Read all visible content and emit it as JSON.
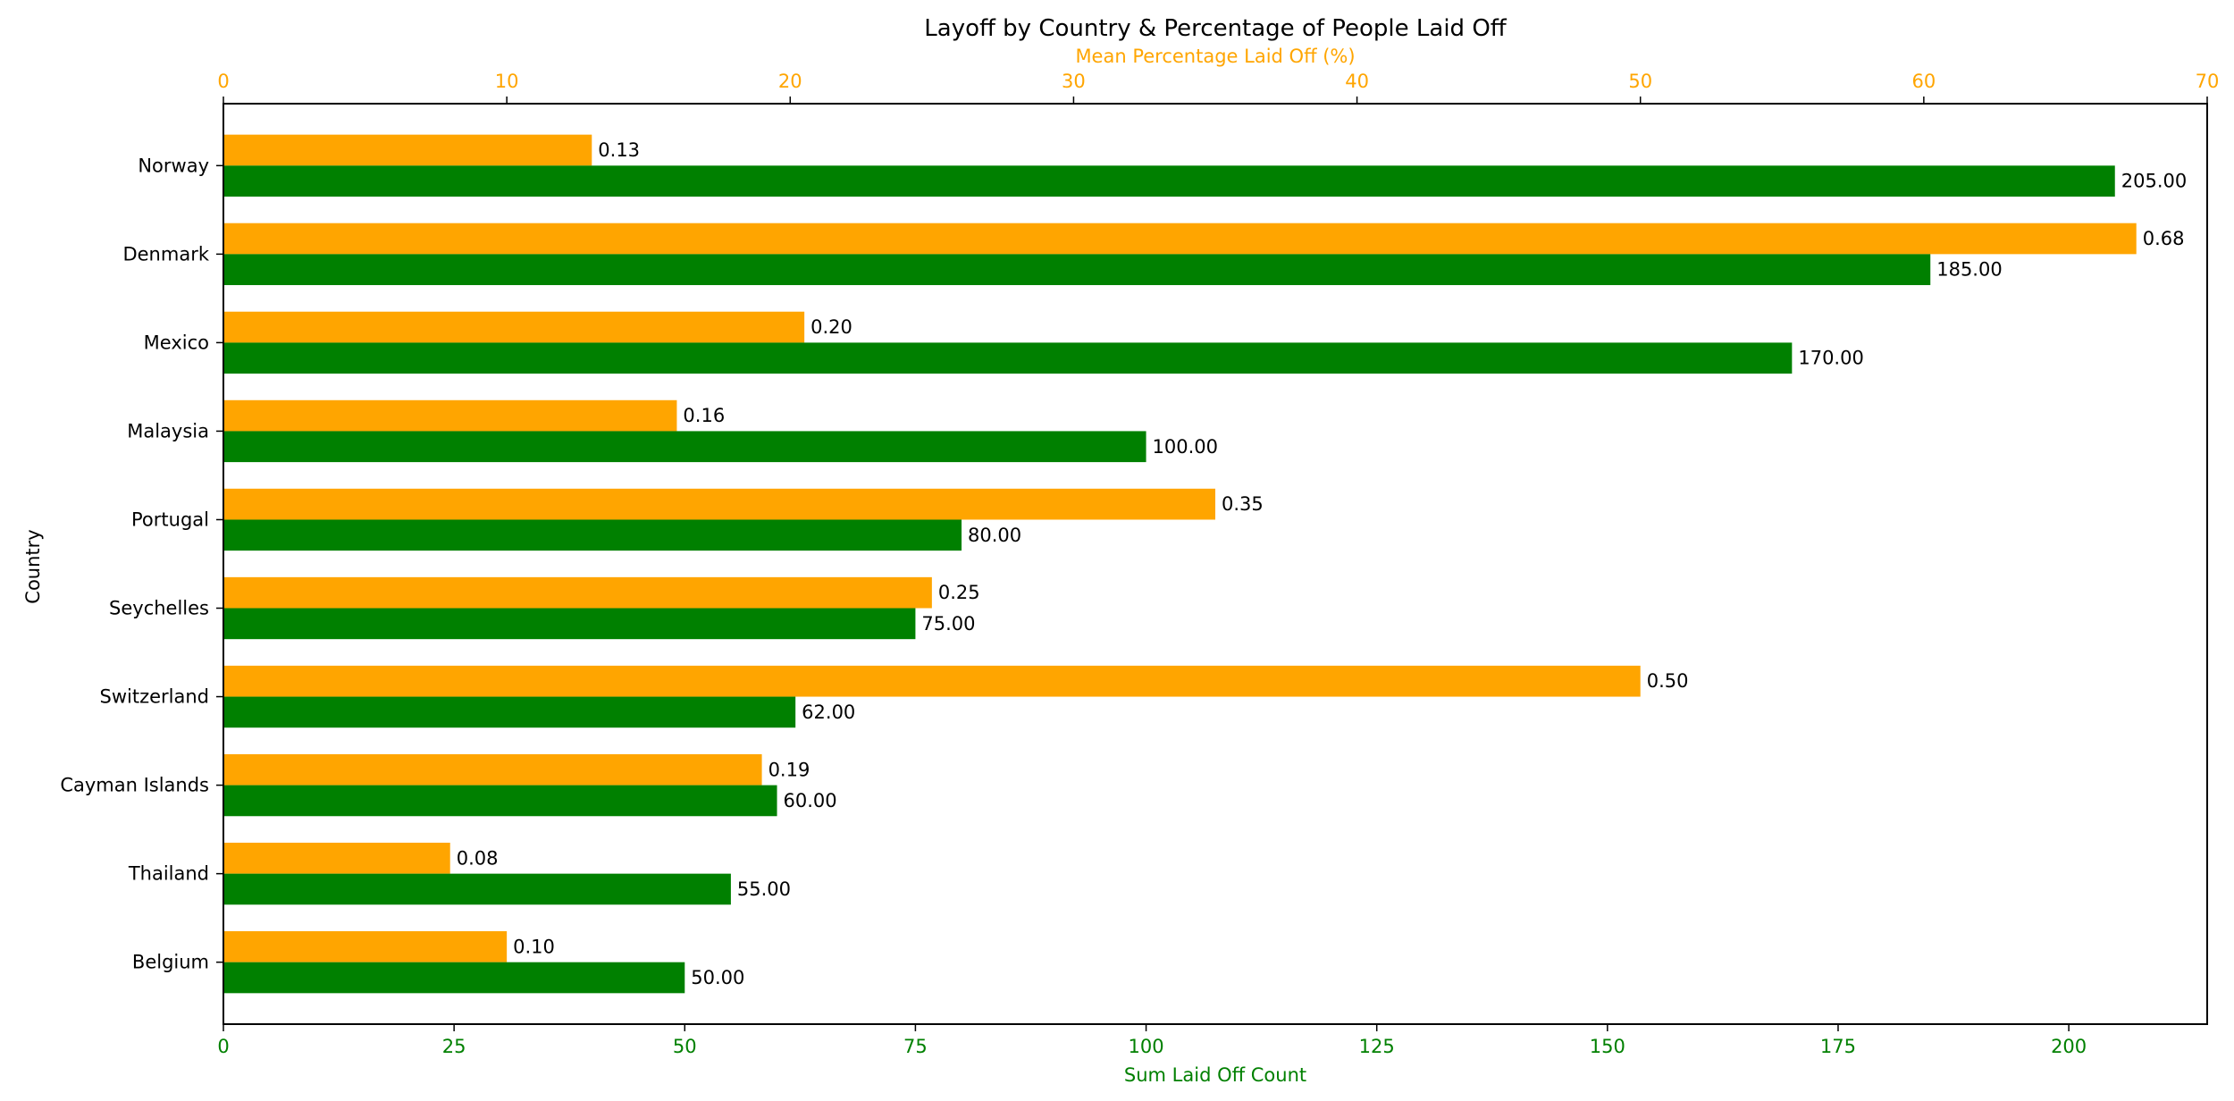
{
  "chart_data": {
    "type": "bar",
    "orientation": "horizontal",
    "title": "Layoff by Country & Percentage of People Laid Off",
    "ylabel": "Country",
    "categories": [
      "Norway",
      "Denmark",
      "Mexico",
      "Malaysia",
      "Portugal",
      "Seychelles",
      "Switzerland",
      "Cayman Islands",
      "Thailand",
      "Belgium"
    ],
    "bottom_axis": {
      "label": "Sum Laid Off Count",
      "xlim": [
        0,
        215
      ],
      "ticks": [
        0,
        25,
        50,
        75,
        100,
        125,
        150,
        175,
        200
      ],
      "color": "#008000"
    },
    "top_axis": {
      "label": "Mean Percentage Laid Off (%)",
      "xlim": [
        0,
        70
      ],
      "ticks": [
        0,
        10,
        20,
        30,
        40,
        50,
        60,
        70
      ],
      "color": "#FFA500"
    },
    "series": [
      {
        "name": "Mean Percentage Laid Off (%)",
        "axis": "top",
        "color": "#FFA500",
        "values": [
          0.13,
          0.68,
          0.2,
          0.16,
          0.35,
          0.25,
          0.5,
          0.19,
          0.08,
          0.1
        ],
        "display_values": [
          13,
          67.5,
          20.5,
          16,
          35,
          25,
          50,
          19,
          8,
          10
        ],
        "labels": [
          "0.13",
          "0.68",
          "0.20",
          "0.16",
          "0.35",
          "0.25",
          "0.50",
          "0.19",
          "0.08",
          "0.10"
        ]
      },
      {
        "name": "Sum Laid Off Count",
        "axis": "bottom",
        "color": "#008000",
        "values": [
          205,
          185,
          170,
          100,
          80,
          75,
          62,
          60,
          55,
          50
        ],
        "labels": [
          "205.00",
          "185.00",
          "170.00",
          "100.00",
          "80.00",
          "75.00",
          "62.00",
          "60.00",
          "55.00",
          "50.00"
        ]
      }
    ],
    "grid": false,
    "legend": "none"
  }
}
